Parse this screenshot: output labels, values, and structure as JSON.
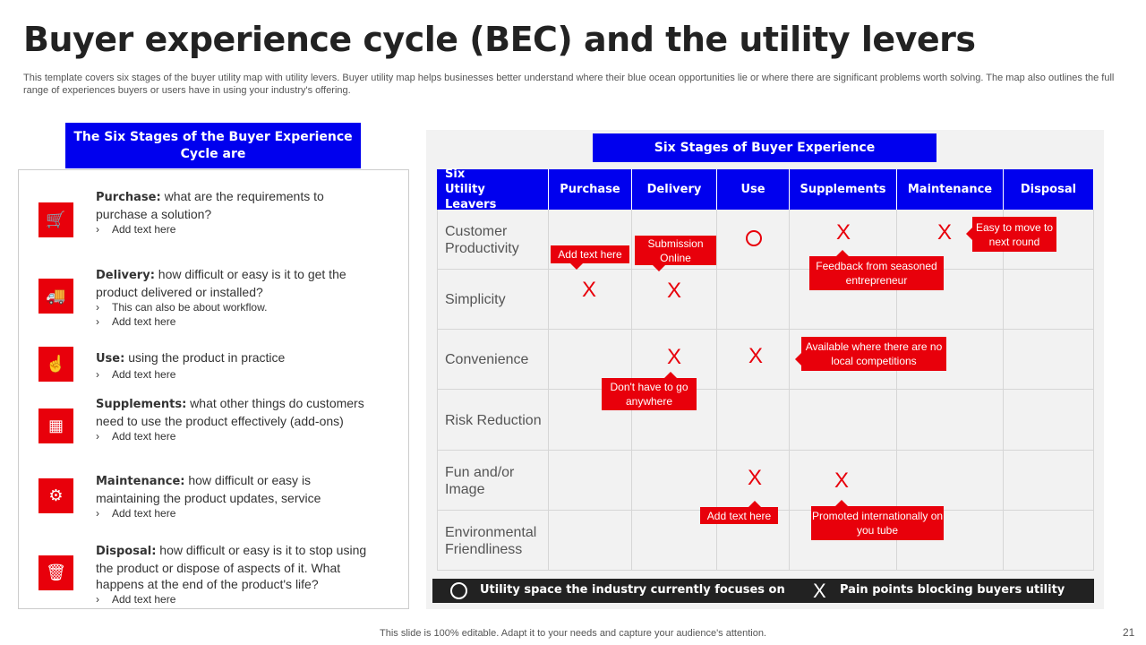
{
  "title": "Buyer experience cycle (BEC) and the utility levers",
  "description": "This template covers six stages of the buyer utility map with utility levers. Buyer utility map helps businesses better understand where their blue ocean opportunities lie or where there are significant problems worth solving. The map also outlines the full range of experiences buyers or users have in using your industry's offering.",
  "left": {
    "header": "The Six Stages of the Buyer Experience Cycle are",
    "stages": [
      {
        "name": "Purchase",
        "sep": ":",
        "text": " what are the requirements to purchase a solution?",
        "bullets": [
          "Add text here"
        ],
        "icon": "shopping-cart-icon"
      },
      {
        "name": "Delivery",
        "sep": ":",
        "text": " how difficult or easy is it to get the product delivered or installed?",
        "bullets": [
          "This can also be about workflow.",
          "Add text here"
        ],
        "icon": "delivery-truck-icon"
      },
      {
        "name": "Use",
        "sep": ":",
        "text": " using the product in practice",
        "bullets": [
          "Add text here"
        ],
        "icon": "hand-tap-icon"
      },
      {
        "name": "Supplements",
        "sep": ":",
        "text": " what other things do customers need to use the product effectively (add-ons)",
        "bullets": [
          "Add text here"
        ],
        "icon": "add-ons-icon"
      },
      {
        "name": "Maintenance",
        "sep": ":",
        "text": " how difficult or easy is maintaining the product updates, service",
        "bullets": [
          "Add text here"
        ],
        "icon": "maintenance-gear-icon"
      },
      {
        "name": "Disposal",
        "sep": ":",
        "text": " how difficult or easy is it to stop using the product or dispose of aspects of it. What happens at the end of the product's life?",
        "bullets": [
          "Add text here"
        ],
        "icon": "trash-disposal-icon"
      }
    ]
  },
  "right": {
    "header": "Six Stages of Buyer Experience",
    "corner": "Six Utility Leavers",
    "columns": [
      "Purchase",
      "Delivery",
      "Use",
      "Supplements",
      "Maintenance",
      "Disposal"
    ],
    "rows": [
      "Customer Productivity",
      "Simplicity",
      "Convenience",
      "Risk Reduction",
      "Fun and/or Image",
      "Environmental Friendliness"
    ],
    "marks": [
      {
        "row": 0,
        "col": 2,
        "type": "circle"
      },
      {
        "row": 0,
        "col": 3,
        "type": "x"
      },
      {
        "row": 0,
        "col": 4,
        "type": "x"
      },
      {
        "row": 1,
        "col": 0,
        "type": "x"
      },
      {
        "row": 1,
        "col": 1,
        "type": "x"
      },
      {
        "row": 2,
        "col": 1,
        "type": "x"
      },
      {
        "row": 2,
        "col": 2,
        "type": "x"
      },
      {
        "row": 4,
        "col": 2,
        "type": "x"
      },
      {
        "row": 4,
        "col": 3,
        "type": "x"
      }
    ],
    "callouts": [
      "Add text here",
      "Submission Online",
      "Feedback from seasoned entrepreneur",
      "Easy to move to next round",
      "Available where there are no local competitions",
      "Don't have to go anywhere",
      "Add text here",
      "Promoted internationally on you tube"
    ],
    "legend": {
      "circle": "Utility space the industry currently focuses on",
      "x": "Pain points blocking buyers utility",
      "x_symbol": "X"
    },
    "x_symbol": "X"
  },
  "colors": {
    "blue": "#0000ee",
    "red": "#e8000b",
    "dark": "#222222"
  },
  "footer": "This slide is 100% editable. Adapt it to your needs and capture your audience's attention.",
  "page_number": "21"
}
